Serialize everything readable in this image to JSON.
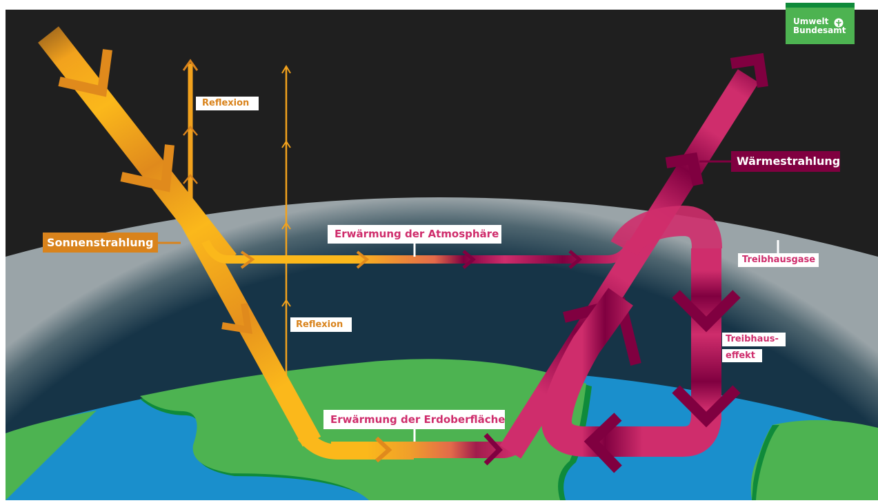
{
  "logo": {
    "line1": "Umwelt",
    "line2": "Bundesamt"
  },
  "labels": {
    "sonnenstrahlung": "Sonnenstrahlung",
    "reflexion_top": "Reflexion",
    "reflexion_mid": "Reflexion",
    "erwaermung_atmosphaere": "Erwärmung der Atmosphäre",
    "erwaermung_erdoberflaeche": "Erwärmung der Erdoberfläche",
    "waermestrahlung": "Wärmestrahlung",
    "treibhausgase": "Treibhausgase",
    "treibhauseffekt_line1": "Treibhaus-",
    "treibhauseffekt_line2": "effekt"
  },
  "colors": {
    "space": "#1f1f1f",
    "atmosphere": "#163447",
    "haze": "#8c9aa0",
    "ocean": "#1a8fcc",
    "land": "#4db351",
    "land_dark": "#0f8a3a",
    "sun_yellow": "#fbb81b",
    "sun_orange": "#d9831c",
    "heat_pink": "#cf2d6c",
    "heat_maroon": "#800040"
  }
}
